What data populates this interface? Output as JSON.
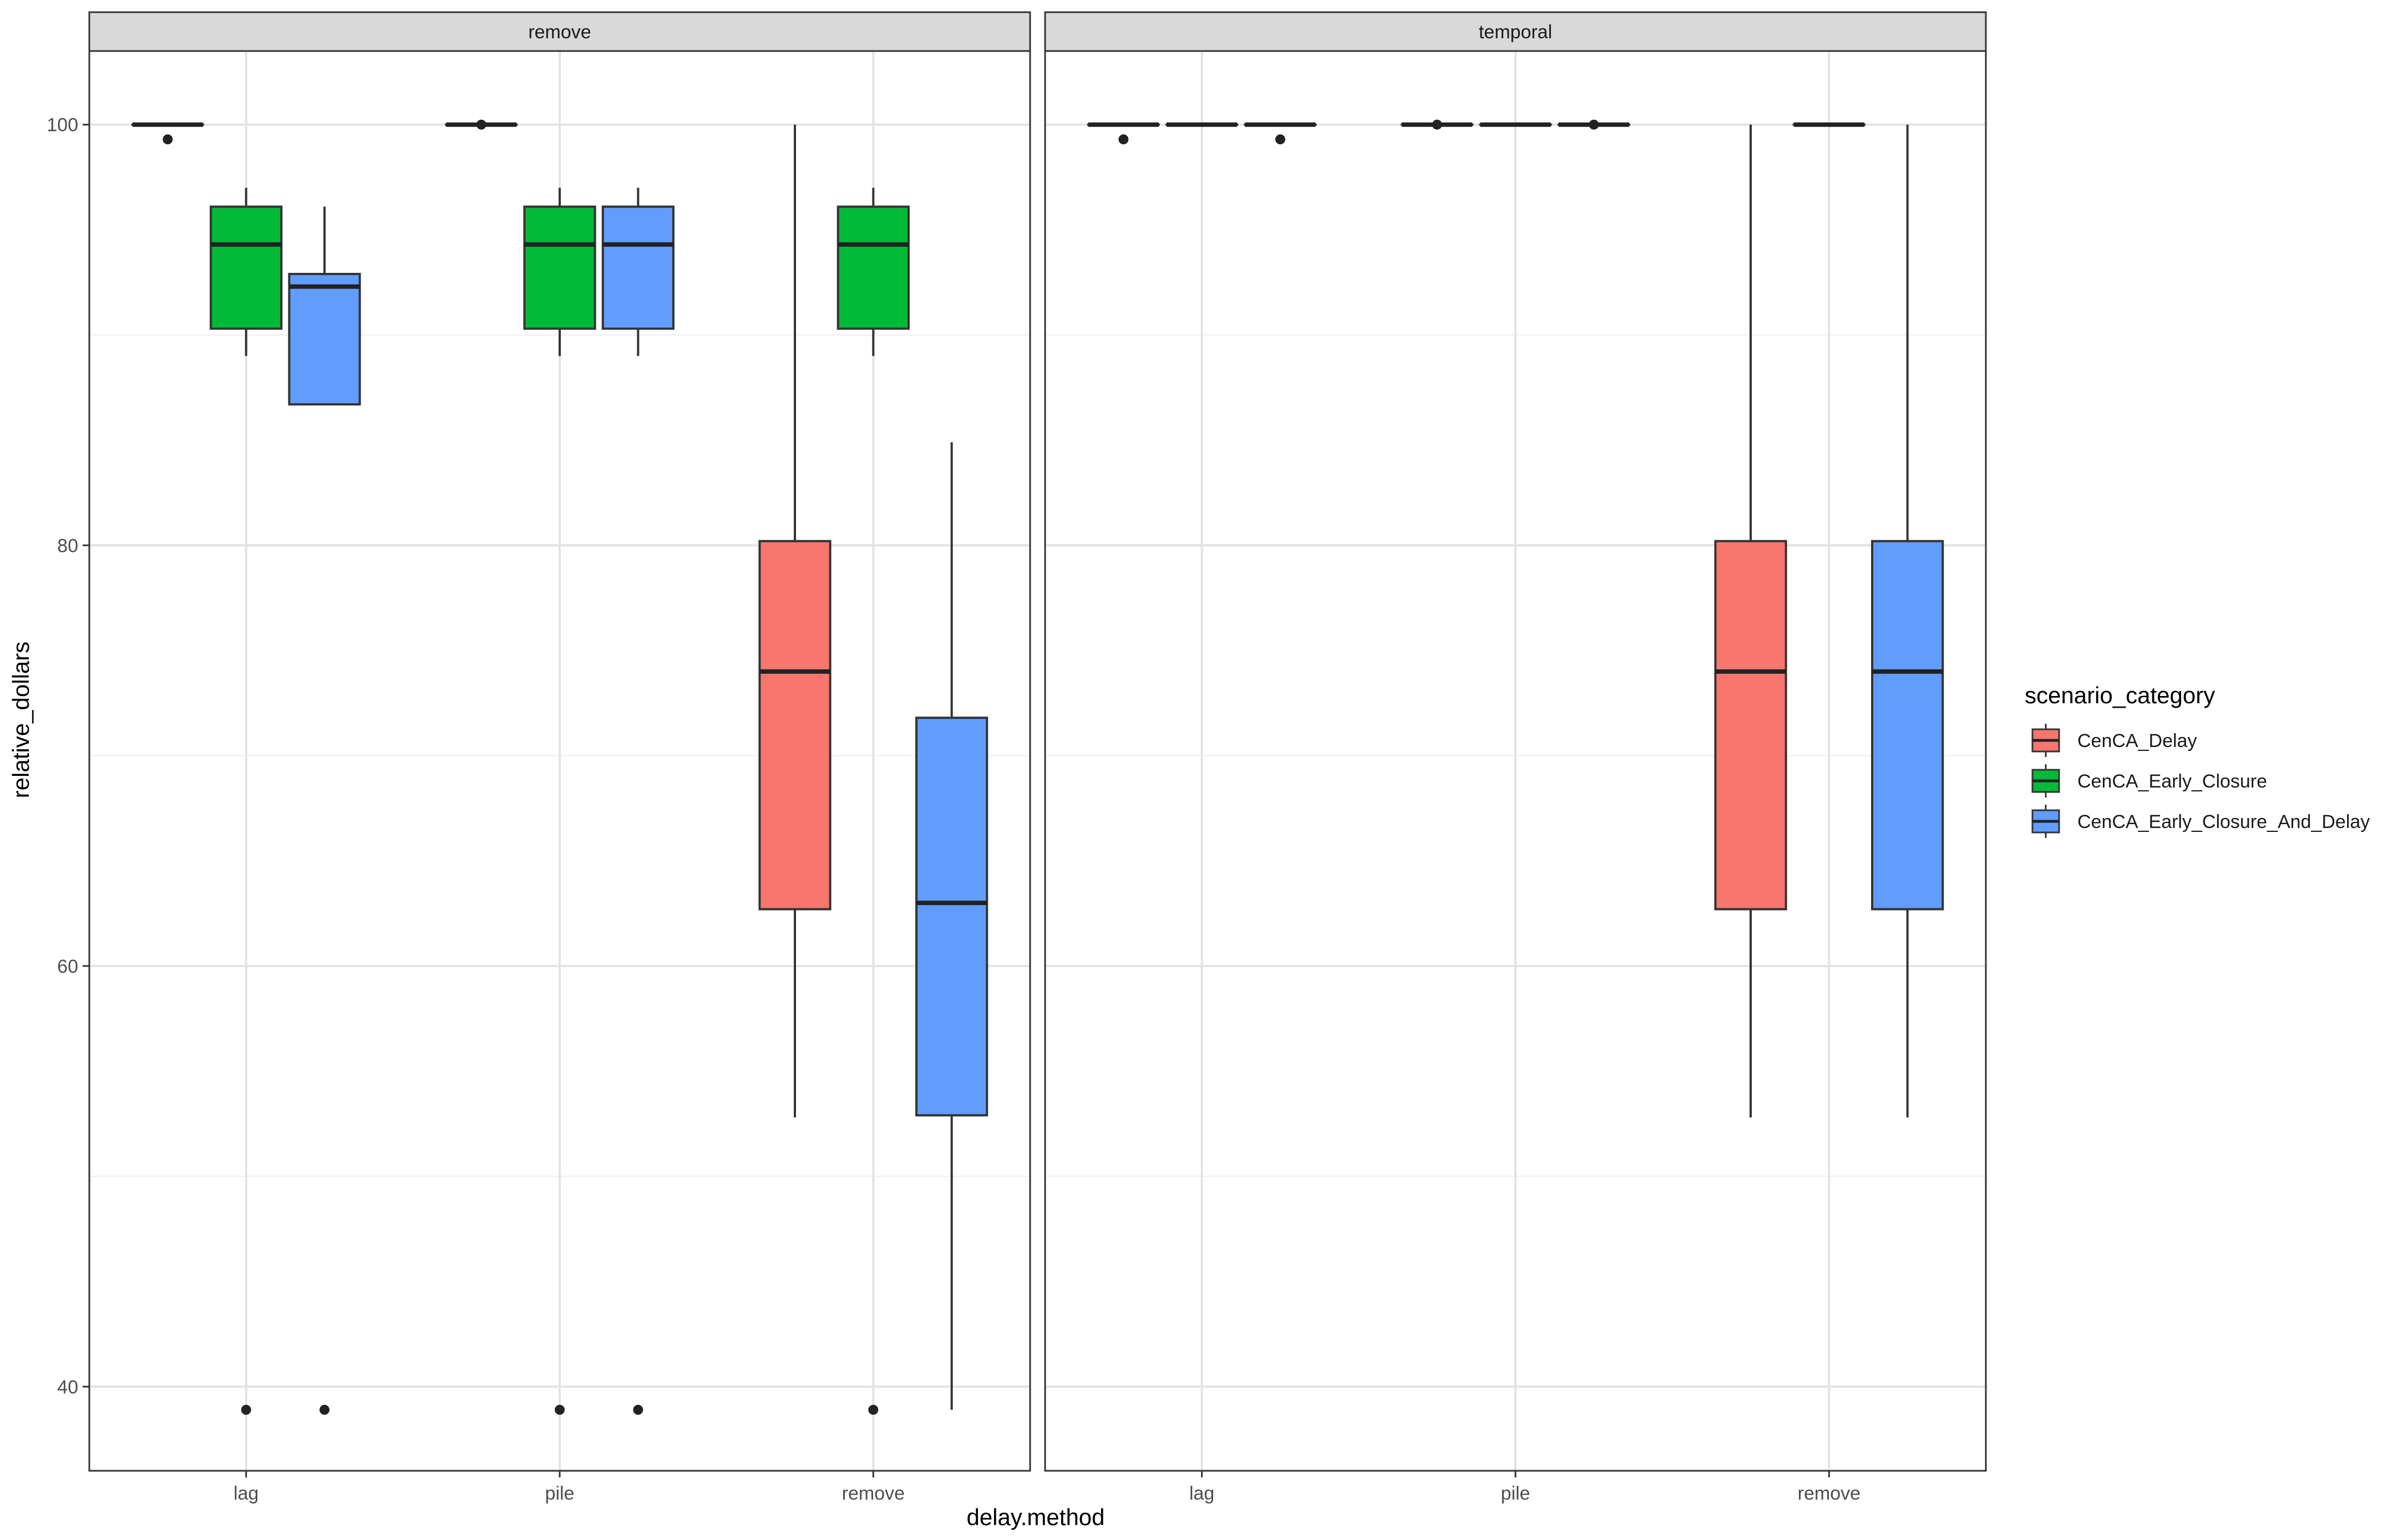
{
  "chart_data": {
    "type": "boxplot",
    "facet_variable": "facet",
    "facets": [
      "remove",
      "temporal"
    ],
    "x_categories": [
      "lag",
      "pile",
      "remove"
    ],
    "xlabel": "delay.method",
    "ylabel": "relative_dollars",
    "y_ticks": [
      40,
      60,
      80,
      100
    ],
    "ylim": [
      36,
      103.5
    ],
    "grid": true,
    "legend": {
      "title": "scenario_category",
      "position": "right",
      "entries": [
        {
          "name": "CenCA_Delay",
          "color": "#F8766D"
        },
        {
          "name": "CenCA_Early_Closure",
          "color": "#00BA38"
        },
        {
          "name": "CenCA_Early_Closure_And_Delay",
          "color": "#619CFF"
        }
      ]
    },
    "boxes": [
      {
        "facet": "remove",
        "x": "lag",
        "series": "CenCA_Delay",
        "min": 100,
        "q1": 100,
        "median": 100,
        "q3": 100,
        "max": 100,
        "outliers": [
          99.3
        ]
      },
      {
        "facet": "remove",
        "x": "lag",
        "series": "CenCA_Early_Closure",
        "min": 89,
        "q1": 90.3,
        "median": 94.3,
        "q3": 96.1,
        "max": 97,
        "outliers": [
          38.9
        ]
      },
      {
        "facet": "remove",
        "x": "lag",
        "series": "CenCA_Early_Closure_And_Delay",
        "min": 86.7,
        "q1": 86.7,
        "median": 92.3,
        "q3": 92.9,
        "max": 96.1,
        "outliers": [
          38.9
        ]
      },
      {
        "facet": "remove",
        "x": "pile",
        "series": "CenCA_Delay",
        "min": 100,
        "q1": 100,
        "median": 100,
        "q3": 100,
        "max": 100,
        "outliers": [
          100
        ]
      },
      {
        "facet": "remove",
        "x": "pile",
        "series": "CenCA_Early_Closure",
        "min": 89,
        "q1": 90.3,
        "median": 94.3,
        "q3": 96.1,
        "max": 97,
        "outliers": [
          38.9
        ]
      },
      {
        "facet": "remove",
        "x": "pile",
        "series": "CenCA_Early_Closure_And_Delay",
        "min": 89,
        "q1": 90.3,
        "median": 94.3,
        "q3": 96.1,
        "max": 97,
        "outliers": [
          38.9
        ]
      },
      {
        "facet": "remove",
        "x": "remove",
        "series": "CenCA_Delay",
        "min": 52.8,
        "q1": 62.7,
        "median": 74,
        "q3": 80.2,
        "max": 100,
        "outliers": []
      },
      {
        "facet": "remove",
        "x": "remove",
        "series": "CenCA_Early_Closure",
        "min": 89,
        "q1": 90.3,
        "median": 94.3,
        "q3": 96.1,
        "max": 97,
        "outliers": [
          38.9
        ]
      },
      {
        "facet": "remove",
        "x": "remove",
        "series": "CenCA_Early_Closure_And_Delay",
        "min": 38.9,
        "q1": 52.9,
        "median": 63,
        "q3": 71.8,
        "max": 84.9,
        "outliers": []
      },
      {
        "facet": "temporal",
        "x": "lag",
        "series": "CenCA_Delay",
        "min": 100,
        "q1": 100,
        "median": 100,
        "q3": 100,
        "max": 100,
        "outliers": [
          99.3
        ]
      },
      {
        "facet": "temporal",
        "x": "lag",
        "series": "CenCA_Early_Closure",
        "min": 100,
        "q1": 100,
        "median": 100,
        "q3": 100,
        "max": 100,
        "outliers": []
      },
      {
        "facet": "temporal",
        "x": "lag",
        "series": "CenCA_Early_Closure_And_Delay",
        "min": 100,
        "q1": 100,
        "median": 100,
        "q3": 100,
        "max": 100,
        "outliers": [
          99.3
        ]
      },
      {
        "facet": "temporal",
        "x": "pile",
        "series": "CenCA_Delay",
        "min": 100,
        "q1": 100,
        "median": 100,
        "q3": 100,
        "max": 100,
        "outliers": [
          100
        ]
      },
      {
        "facet": "temporal",
        "x": "pile",
        "series": "CenCA_Early_Closure",
        "min": 100,
        "q1": 100,
        "median": 100,
        "q3": 100,
        "max": 100,
        "outliers": []
      },
      {
        "facet": "temporal",
        "x": "pile",
        "series": "CenCA_Early_Closure_And_Delay",
        "min": 100,
        "q1": 100,
        "median": 100,
        "q3": 100,
        "max": 100,
        "outliers": [
          100
        ]
      },
      {
        "facet": "temporal",
        "x": "remove",
        "series": "CenCA_Delay",
        "min": 52.8,
        "q1": 62.7,
        "median": 74,
        "q3": 80.2,
        "max": 100,
        "outliers": []
      },
      {
        "facet": "temporal",
        "x": "remove",
        "series": "CenCA_Early_Closure",
        "min": 100,
        "q1": 100,
        "median": 100,
        "q3": 100,
        "max": 100,
        "outliers": []
      },
      {
        "facet": "temporal",
        "x": "remove",
        "series": "CenCA_Early_Closure_And_Delay",
        "min": 52.8,
        "q1": 62.7,
        "median": 74,
        "q3": 80.2,
        "max": 100,
        "outliers": []
      }
    ]
  }
}
